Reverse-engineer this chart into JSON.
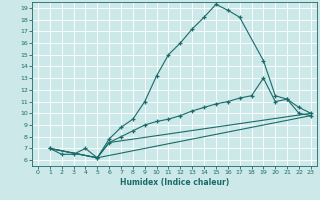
{
  "xlabel": "Humidex (Indice chaleur)",
  "background_color": "#cce8e8",
  "line_color": "#1a6b6b",
  "xlim": [
    -0.5,
    23.5
  ],
  "ylim": [
    5.5,
    19.5
  ],
  "xticks": [
    0,
    1,
    2,
    3,
    4,
    5,
    6,
    7,
    8,
    9,
    10,
    11,
    12,
    13,
    14,
    15,
    16,
    17,
    18,
    19,
    20,
    21,
    22,
    23
  ],
  "yticks": [
    6,
    7,
    8,
    9,
    10,
    11,
    12,
    13,
    14,
    15,
    16,
    17,
    18,
    19
  ],
  "line1_x": [
    1,
    2,
    3,
    4,
    5,
    6,
    7,
    8,
    9,
    10,
    11,
    12,
    13,
    14,
    15,
    16,
    17,
    19,
    20,
    21,
    22,
    23
  ],
  "line1_y": [
    7,
    6.5,
    6.5,
    7.0,
    6.2,
    7.8,
    8.8,
    9.5,
    11.0,
    13.2,
    15.0,
    16.0,
    17.2,
    18.2,
    19.3,
    18.8,
    18.2,
    14.5,
    11.5,
    11.2,
    10.0,
    9.8
  ],
  "line2_x": [
    1,
    5,
    6,
    7,
    8,
    9,
    10,
    11,
    12,
    13,
    14,
    15,
    16,
    17,
    18,
    19,
    20,
    21,
    22,
    23
  ],
  "line2_y": [
    7,
    6.2,
    7.5,
    8.0,
    8.5,
    9.0,
    9.3,
    9.5,
    9.8,
    10.2,
    10.5,
    10.8,
    11.0,
    11.3,
    11.5,
    13.0,
    11.0,
    11.2,
    10.5,
    10.0
  ],
  "line3_x": [
    1,
    5,
    6,
    23
  ],
  "line3_y": [
    7,
    6.2,
    7.5,
    10.0
  ],
  "line4_x": [
    1,
    5,
    23
  ],
  "line4_y": [
    7,
    6.2,
    9.8
  ]
}
